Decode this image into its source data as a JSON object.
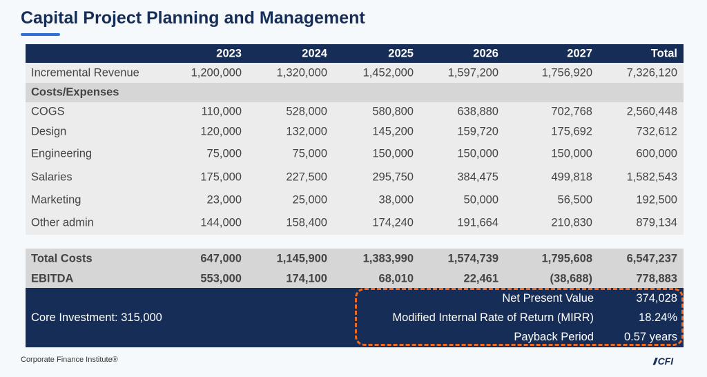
{
  "title": "Capital Project Planning and Management",
  "header": [
    "",
    "2023",
    "2024",
    "2025",
    "2026",
    "2027",
    "Total"
  ],
  "rows": [
    {
      "label": "Incremental Revenue",
      "values": [
        "1,200,000",
        "1,320,000",
        "1,452,000",
        "1,597,200",
        "1,756,920",
        "7,326,120"
      ]
    },
    {
      "label": "Costs/Expenses",
      "values": [
        "",
        "",
        "",
        "",
        "",
        ""
      ]
    },
    {
      "label": "COGS",
      "values": [
        "110,000",
        "528,000",
        "580,800",
        "638,880",
        "702,768",
        "2,560,448"
      ]
    },
    {
      "label": "Design",
      "values": [
        "120,000",
        "132,000",
        "145,200",
        "159,720",
        "175,692",
        "732,612"
      ]
    },
    {
      "label": "Engineering",
      "values": [
        "75,000",
        "75,000",
        "150,000",
        "150,000",
        "150,000",
        "600,000"
      ]
    },
    {
      "label": "Salaries",
      "values": [
        "175,000",
        "227,500",
        "295,750",
        "384,475",
        "499,818",
        "1,582,543"
      ]
    },
    {
      "label": "Marketing",
      "values": [
        "23,000",
        "25,000",
        "38,000",
        "50,000",
        "56,500",
        "192,500"
      ]
    },
    {
      "label": "Other admin",
      "values": [
        "144,000",
        "158,400",
        "174,240",
        "191,664",
        "210,830",
        "879,134"
      ]
    },
    {
      "label": "Total Costs",
      "values": [
        "647,000",
        "1,145,900",
        "1,383,990",
        "1,574,739",
        "1,795,608",
        "6,547,237"
      ]
    },
    {
      "label": "EBITDA",
      "values": [
        "553,000",
        "174,100",
        "68,010",
        "22,461",
        "(38,688)",
        "778,883"
      ]
    }
  ],
  "core_investment": "Core Investment: 315,000",
  "metrics": [
    {
      "label": "Net Present Value",
      "value": "374,028"
    },
    {
      "label": "Modified Internal Rate of Return (MIRR)",
      "value": "18.24%"
    },
    {
      "label": "Payback Period",
      "value": "0.57 years"
    }
  ],
  "footer": "Corporate Finance Institute®",
  "logo": "CFI",
  "colors": {
    "navy": "#152d57",
    "accent": "#f26a21",
    "underline": "#2f6fd6"
  }
}
